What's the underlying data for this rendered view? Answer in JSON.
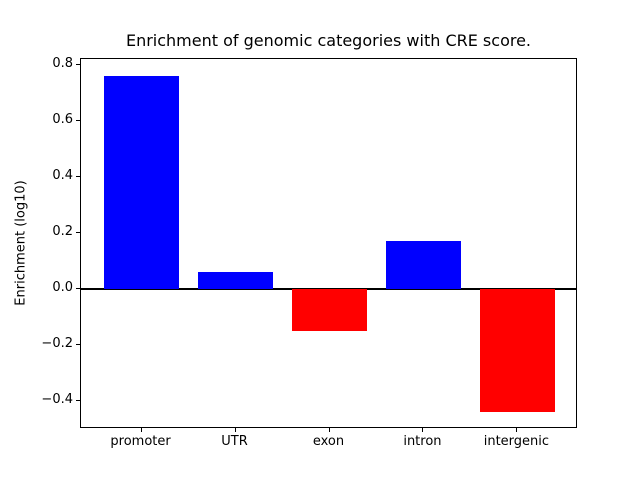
{
  "chart_data": {
    "type": "bar",
    "title": "Enrichment of genomic categories with CRE score.",
    "ylabel": "Enrichment (log10)",
    "xlabel": "",
    "categories": [
      "promoter",
      "UTR",
      "exon",
      "intron",
      "intergenic"
    ],
    "values": [
      0.76,
      0.06,
      -0.15,
      0.17,
      -0.44
    ],
    "bar_colors": [
      "#0000ff",
      "#0000ff",
      "#ff0000",
      "#0000ff",
      "#ff0000"
    ],
    "positive_color": "#0000ff",
    "negative_color": "#ff0000",
    "bar_width": 0.8,
    "ylim": [
      -0.5,
      0.82
    ],
    "xlim": [
      -0.645,
      4.645
    ],
    "yticks": [
      0.8,
      0.6,
      0.4,
      0.2,
      0.0,
      -0.2,
      -0.4
    ],
    "ytick_labels": [
      "0.8",
      "0.6",
      "0.4",
      "0.2",
      "0.0",
      "−0.2",
      "−0.4"
    ],
    "zero_line_value": 0,
    "zero_line_color": "#000000",
    "grid": false,
    "legend": null
  }
}
